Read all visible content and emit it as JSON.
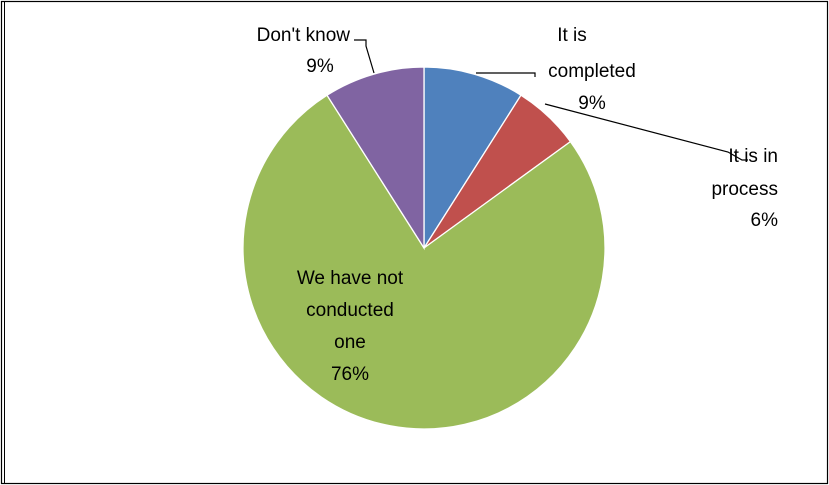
{
  "chart_data": {
    "type": "pie",
    "title": "",
    "slices": [
      {
        "label": [
          "It is",
          "completed"
        ],
        "value_label": "9%",
        "value": 9,
        "color": "#4f81bd"
      },
      {
        "label": [
          "It is in",
          "process"
        ],
        "value_label": "6%",
        "value": 6,
        "color": "#c0504d"
      },
      {
        "label": [
          "We have not",
          "conducted",
          "one"
        ],
        "value_label": "76%",
        "value": 76,
        "color": "#9bbb59"
      },
      {
        "label": [
          "Don't know"
        ],
        "value_label": "9%",
        "value": 9,
        "color": "#8064a2"
      }
    ],
    "legend": "none",
    "data_labels": "outside-with-leader-lines (inside for largest slice)"
  },
  "colors": {
    "frame": "#000000",
    "slice_border": "#ffffff",
    "text": "#000000"
  }
}
